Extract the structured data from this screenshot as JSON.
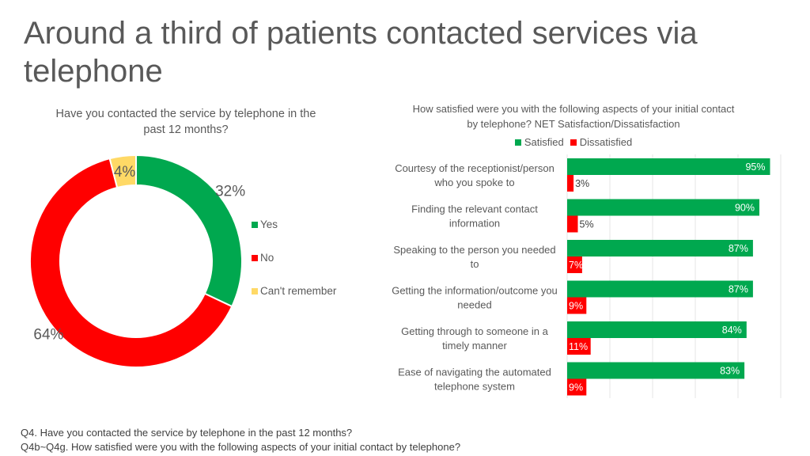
{
  "header": {
    "title": "Around a third of patients contacted services via telephone"
  },
  "colors": {
    "green": "#00A84F",
    "red": "#FF0000",
    "yellow": "#FFD966",
    "text": "#595959"
  },
  "chart_data": [
    {
      "type": "pie",
      "title": "Have you contacted the service by telephone in the past 12 months?",
      "categories": [
        "Yes",
        "No",
        "Can't remember"
      ],
      "values": [
        32,
        64,
        4
      ],
      "labels": [
        "32%",
        "64%",
        "4%"
      ],
      "legend": "right"
    },
    {
      "type": "bar",
      "orientation": "horizontal",
      "title": "How satisfied were you with the following aspects of your initial contact by telephone? NET Satisfaction/Dissatisfaction",
      "categories": [
        [
          "Courtesy of the receptionist/person",
          "who you spoke to"
        ],
        [
          "Finding the relevant contact",
          "information"
        ],
        [
          "Speaking to the person you needed",
          "to"
        ],
        [
          "Getting the information/outcome you",
          "needed"
        ],
        [
          "Getting through to someone in a",
          "timely manner"
        ],
        [
          "Ease of navigating the automated",
          "telephone system"
        ]
      ],
      "series": [
        {
          "name": "Satisfied",
          "values": [
            95,
            90,
            87,
            87,
            84,
            83
          ],
          "labels": [
            "95%",
            "90%",
            "87%",
            "87%",
            "84%",
            "83%"
          ]
        },
        {
          "name": "Dissatisfied",
          "values": [
            3,
            5,
            7,
            9,
            11,
            9
          ],
          "labels": [
            "3%",
            "5%",
            "7%",
            "9%",
            "11%",
            "9%"
          ]
        }
      ],
      "xlim": [
        0,
        100
      ],
      "grid": true,
      "legend": "top"
    }
  ],
  "footnotes": [
    "Q4. Have you contacted the service by telephone in the past 12 months?",
    "Q4b~Q4g. How satisfied were you with the following aspects of your initial contact by telephone?"
  ]
}
